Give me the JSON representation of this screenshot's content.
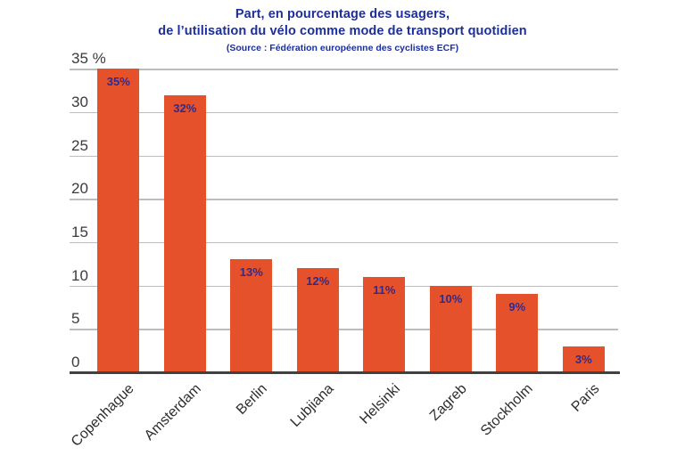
{
  "header": {
    "title_line1": "Part, en pourcentage des usagers,",
    "title_line2": "de l’utilisation du vélo comme mode de transport quotidien",
    "subtitle": "(Source : Fédération européenne des cyclistes ECF)"
  },
  "chart_data": {
    "type": "bar",
    "title": "Part, en pourcentage des usagers, de l’utilisation du vélo comme mode de transport quotidien",
    "subtitle": "(Source : Fédération européenne des cyclistes ECF)",
    "categories": [
      "Copenhague",
      "Amsterdam",
      "Berlin",
      "Lubjiana",
      "Helsinki",
      "Zagreb",
      "Stockholm",
      "Paris"
    ],
    "values": [
      35,
      32,
      13,
      12,
      11,
      10,
      9,
      3
    ],
    "bar_labels": [
      "35%",
      "32%",
      "13%",
      "12%",
      "11%",
      "10%",
      "9%",
      "3%"
    ],
    "xlabel": "",
    "ylabel": "",
    "ylim": [
      0,
      35
    ],
    "y_ticks": [
      {
        "value": 0,
        "label": "0"
      },
      {
        "value": 5,
        "label": "5"
      },
      {
        "value": 10,
        "label": "10"
      },
      {
        "value": 15,
        "label": "15"
      },
      {
        "value": 20,
        "label": "20"
      },
      {
        "value": 25,
        "label": "25"
      },
      {
        "value": 30,
        "label": "30"
      },
      {
        "value": 35,
        "label": "35 %"
      }
    ],
    "grid": true,
    "legend": false,
    "colors": {
      "bar": "#e5512b",
      "bar_value_label": "#2f2b8e",
      "title": "#1c2f9c",
      "tick_label": "#3a3a3a",
      "category_label": "#2d2d2d",
      "gridline": "#bdbdbd",
      "axis_line": "#414141",
      "background": "#ffffff"
    }
  }
}
